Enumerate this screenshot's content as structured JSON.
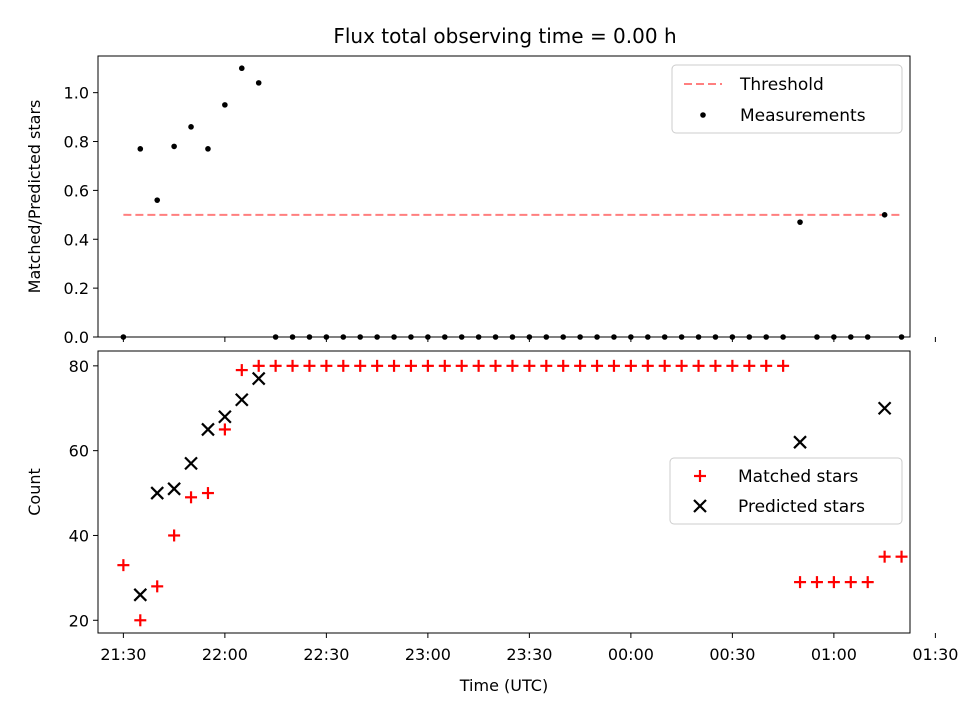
{
  "chart_data": [
    {
      "type": "scatter",
      "title": "Flux total observing time = 0.00 h",
      "xlabel": "",
      "ylabel": "Matched/Predicted stars",
      "ylim": [
        0,
        1.15
      ],
      "yticks": [
        "0.0",
        "0.2",
        "0.4",
        "0.6",
        "0.8",
        "1.0"
      ],
      "x_range_minutes_after_2130": [
        -7.5,
        232.5
      ],
      "legend": {
        "placement": "top-right",
        "entries": [
          "Threshold",
          "Measurements"
        ]
      },
      "threshold": {
        "name": "Threshold",
        "y": 0.5,
        "x_start": "21:30",
        "x_end": "01:20",
        "color": "#ff7f7f",
        "style": "dashed"
      },
      "series": [
        {
          "name": "Measurements",
          "marker": "dot",
          "color": "#000000",
          "points": [
            [
              "21:30",
              0.0
            ],
            [
              "21:35",
              0.77
            ],
            [
              "21:40",
              0.56
            ],
            [
              "21:45",
              0.78
            ],
            [
              "21:50",
              0.86
            ],
            [
              "21:55",
              0.77
            ],
            [
              "22:00",
              0.95
            ],
            [
              "22:05",
              1.1
            ],
            [
              "22:10",
              1.04
            ],
            [
              "22:15",
              0.0
            ],
            [
              "22:20",
              0.0
            ],
            [
              "22:25",
              0.0
            ],
            [
              "22:30",
              0.0
            ],
            [
              "22:35",
              0.0
            ],
            [
              "22:40",
              0.0
            ],
            [
              "22:45",
              0.0
            ],
            [
              "22:50",
              0.0
            ],
            [
              "22:55",
              0.0
            ],
            [
              "23:00",
              0.0
            ],
            [
              "23:05",
              0.0
            ],
            [
              "23:10",
              0.0
            ],
            [
              "23:15",
              0.0
            ],
            [
              "23:20",
              0.0
            ],
            [
              "23:25",
              0.0
            ],
            [
              "23:30",
              0.0
            ],
            [
              "23:35",
              0.0
            ],
            [
              "23:40",
              0.0
            ],
            [
              "23:45",
              0.0
            ],
            [
              "23:50",
              0.0
            ],
            [
              "23:55",
              0.0
            ],
            [
              "00:00",
              0.0
            ],
            [
              "00:05",
              0.0
            ],
            [
              "00:10",
              0.0
            ],
            [
              "00:15",
              0.0
            ],
            [
              "00:20",
              0.0
            ],
            [
              "00:25",
              0.0
            ],
            [
              "00:30",
              0.0
            ],
            [
              "00:35",
              0.0
            ],
            [
              "00:40",
              0.0
            ],
            [
              "00:45",
              0.0
            ],
            [
              "00:50",
              0.47
            ],
            [
              "00:55",
              0.0
            ],
            [
              "01:00",
              0.0
            ],
            [
              "01:05",
              0.0
            ],
            [
              "01:10",
              0.0
            ],
            [
              "01:15",
              0.5
            ],
            [
              "01:20",
              0.0
            ]
          ]
        }
      ]
    },
    {
      "type": "scatter",
      "title": "",
      "xlabel": "Time (UTC)",
      "ylabel": "Count",
      "ylim": [
        17,
        83.5
      ],
      "yticks": [
        "20",
        "40",
        "60",
        "80"
      ],
      "xticks": [
        "21:30",
        "22:00",
        "22:30",
        "23:00",
        "23:30",
        "00:00",
        "00:30",
        "01:00",
        "01:30"
      ],
      "x_range_minutes_after_2130": [
        -7.5,
        232.5
      ],
      "legend": {
        "placement": "center-right",
        "entries": [
          "Matched stars",
          "Predicted stars"
        ]
      },
      "series": [
        {
          "name": "Matched stars",
          "marker": "plus",
          "color": "#ff0000",
          "points": [
            [
              "21:30",
              33
            ],
            [
              "21:35",
              20
            ],
            [
              "21:40",
              28
            ],
            [
              "21:45",
              40
            ],
            [
              "21:50",
              49
            ],
            [
              "21:55",
              50
            ],
            [
              "22:00",
              65
            ],
            [
              "22:05",
              79
            ],
            [
              "22:10",
              80
            ],
            [
              "22:15",
              80
            ],
            [
              "22:20",
              80
            ],
            [
              "22:25",
              80
            ],
            [
              "22:30",
              80
            ],
            [
              "22:35",
              80
            ],
            [
              "22:40",
              80
            ],
            [
              "22:45",
              80
            ],
            [
              "22:50",
              80
            ],
            [
              "22:55",
              80
            ],
            [
              "23:00",
              80
            ],
            [
              "23:05",
              80
            ],
            [
              "23:10",
              80
            ],
            [
              "23:15",
              80
            ],
            [
              "23:20",
              80
            ],
            [
              "23:25",
              80
            ],
            [
              "23:30",
              80
            ],
            [
              "23:35",
              80
            ],
            [
              "23:40",
              80
            ],
            [
              "23:45",
              80
            ],
            [
              "23:50",
              80
            ],
            [
              "23:55",
              80
            ],
            [
              "00:00",
              80
            ],
            [
              "00:05",
              80
            ],
            [
              "00:10",
              80
            ],
            [
              "00:15",
              80
            ],
            [
              "00:20",
              80
            ],
            [
              "00:25",
              80
            ],
            [
              "00:30",
              80
            ],
            [
              "00:35",
              80
            ],
            [
              "00:40",
              80
            ],
            [
              "00:45",
              80
            ],
            [
              "00:50",
              29
            ],
            [
              "00:55",
              29
            ],
            [
              "01:00",
              29
            ],
            [
              "01:05",
              29
            ],
            [
              "01:10",
              29
            ],
            [
              "01:15",
              35
            ],
            [
              "01:20",
              35
            ]
          ]
        },
        {
          "name": "Predicted stars",
          "marker": "x",
          "color": "#000000",
          "points": [
            [
              "21:35",
              26
            ],
            [
              "21:40",
              50
            ],
            [
              "21:45",
              51
            ],
            [
              "21:50",
              57
            ],
            [
              "21:55",
              65
            ],
            [
              "22:00",
              68
            ],
            [
              "22:05",
              72
            ],
            [
              "22:10",
              77
            ],
            [
              "00:50",
              62
            ],
            [
              "01:15",
              70
            ]
          ]
        }
      ]
    }
  ]
}
